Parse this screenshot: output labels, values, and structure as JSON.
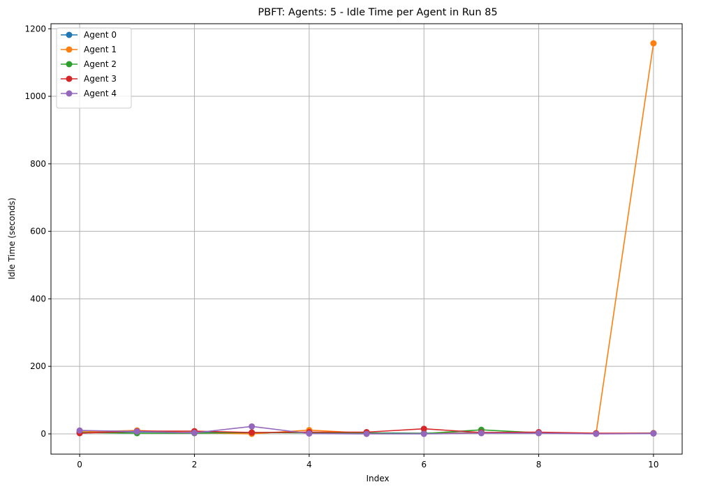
{
  "chart_data": {
    "type": "line",
    "title": "PBFT: Agents: 5 - Idle Time per Agent in Run 85",
    "xlabel": "Index",
    "ylabel": "Idle Time (seconds)",
    "xlim": [
      -0.5,
      10.5
    ],
    "ylim": [
      -60,
      1215
    ],
    "xticks": [
      0,
      2,
      4,
      6,
      8,
      10
    ],
    "yticks": [
      0,
      200,
      400,
      600,
      800,
      1000,
      1200
    ],
    "grid": true,
    "legend_position": "top-left",
    "x": [
      0,
      1,
      2,
      3,
      4,
      5,
      6,
      7,
      8,
      9,
      10
    ],
    "series": [
      {
        "name": "Agent 0",
        "color": "#1f77b4",
        "values": [
          5,
          6,
          4,
          3,
          5,
          3,
          2,
          4,
          3,
          1,
          2
        ]
      },
      {
        "name": "Agent 1",
        "color": "#ff7f0e",
        "values": [
          6,
          10,
          3,
          0,
          11,
          2,
          1,
          3,
          4,
          1,
          1157
        ]
      },
      {
        "name": "Agent 2",
        "color": "#2ca02c",
        "values": [
          4,
          2,
          2,
          4,
          3,
          2,
          1,
          12,
          3,
          1,
          2
        ]
      },
      {
        "name": "Agent 3",
        "color": "#d62728",
        "values": [
          2,
          8,
          8,
          4,
          5,
          5,
          15,
          4,
          5,
          2,
          2
        ]
      },
      {
        "name": "Agent 4",
        "color": "#9467bd",
        "values": [
          10,
          7,
          3,
          22,
          1,
          0,
          0,
          2,
          2,
          0,
          1
        ]
      }
    ]
  }
}
